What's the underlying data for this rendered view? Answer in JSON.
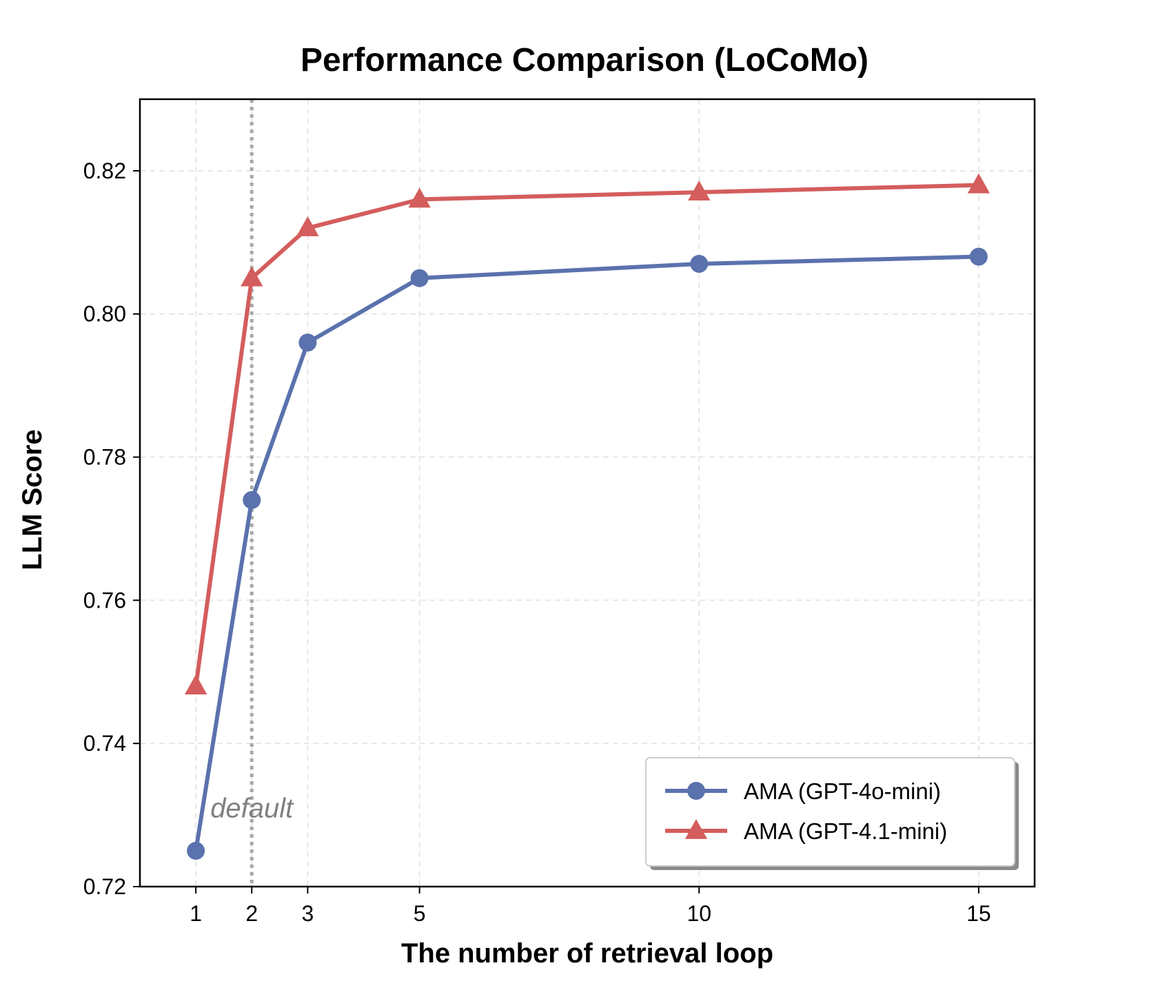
{
  "chart_data": {
    "type": "line",
    "title": "Performance Comparison (LoCoMo)",
    "xlabel": "The number of retrieval loop",
    "ylabel": "LLM Score",
    "xlim": [
      0,
      16
    ],
    "ylim": [
      0.72,
      0.83
    ],
    "xticks": [
      1,
      2,
      3,
      5,
      10,
      15
    ],
    "yticks": [
      0.72,
      0.74,
      0.76,
      0.78,
      0.8,
      0.82
    ],
    "ytick_labels": [
      "0.72",
      "0.74",
      "0.76",
      "0.78",
      "0.80",
      "0.82"
    ],
    "grid": true,
    "legend_position": "lower-right",
    "x": [
      1,
      2,
      3,
      5,
      10,
      15
    ],
    "series": [
      {
        "name": "AMA (GPT-4o-mini)",
        "marker": "circle",
        "color": "#5a72ad",
        "values": [
          0.725,
          0.774,
          0.796,
          0.805,
          0.807,
          0.808
        ]
      },
      {
        "name": "AMA (GPT-4.1-mini)",
        "marker": "triangle",
        "color": "#d45d5d",
        "values": [
          0.748,
          0.805,
          0.812,
          0.816,
          0.817,
          0.818
        ]
      }
    ],
    "reference_line": {
      "x": 2,
      "style": "dotted",
      "color": "#a8a8a8"
    },
    "annotation": {
      "text": "default",
      "x": 2,
      "y": 0.731,
      "color": "#808080"
    }
  }
}
